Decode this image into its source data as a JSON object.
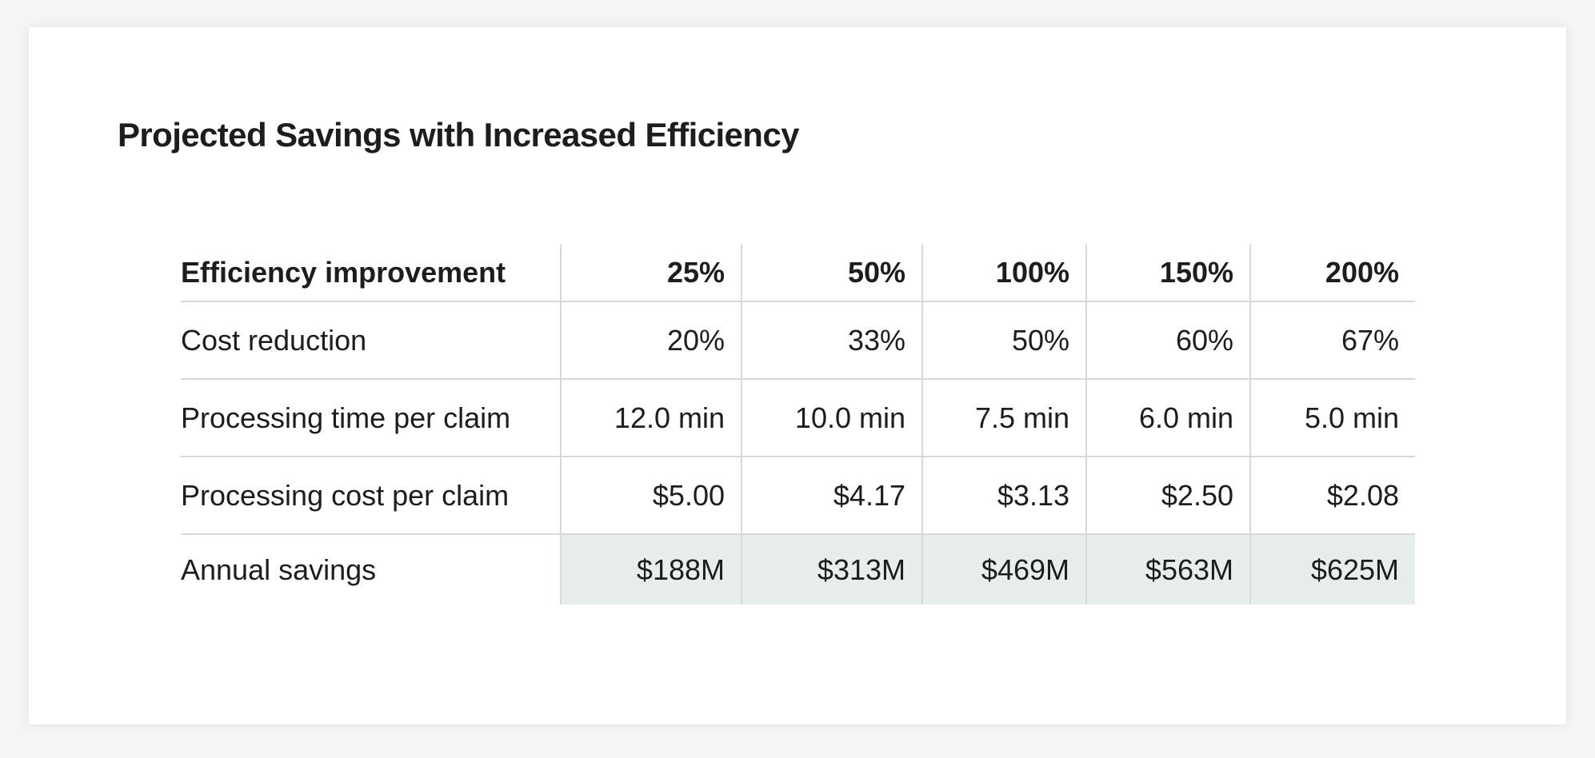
{
  "title": "Projected Savings with Increased Efficiency",
  "table": {
    "header": [
      "Efficiency improvement",
      "25%",
      "50%",
      "100%",
      "150%",
      "200%"
    ],
    "rows": [
      {
        "label": "Cost reduction",
        "values": [
          "20%",
          "33%",
          "50%",
          "60%",
          "67%"
        ]
      },
      {
        "label": "Processing time per claim",
        "values": [
          "12.0 min",
          "10.0 min",
          "7.5 min",
          "6.0 min",
          "5.0 min"
        ]
      },
      {
        "label": "Processing cost per claim",
        "values": [
          "$5.00",
          "$4.17",
          "$3.13",
          "$2.50",
          "$2.08"
        ]
      },
      {
        "label": "Annual savings",
        "values": [
          "$188M",
          "$313M",
          "$469M",
          "$563M",
          "$625M"
        ]
      }
    ],
    "highlight_row": "Annual savings",
    "highlight_color": "#e7eeed"
  }
}
